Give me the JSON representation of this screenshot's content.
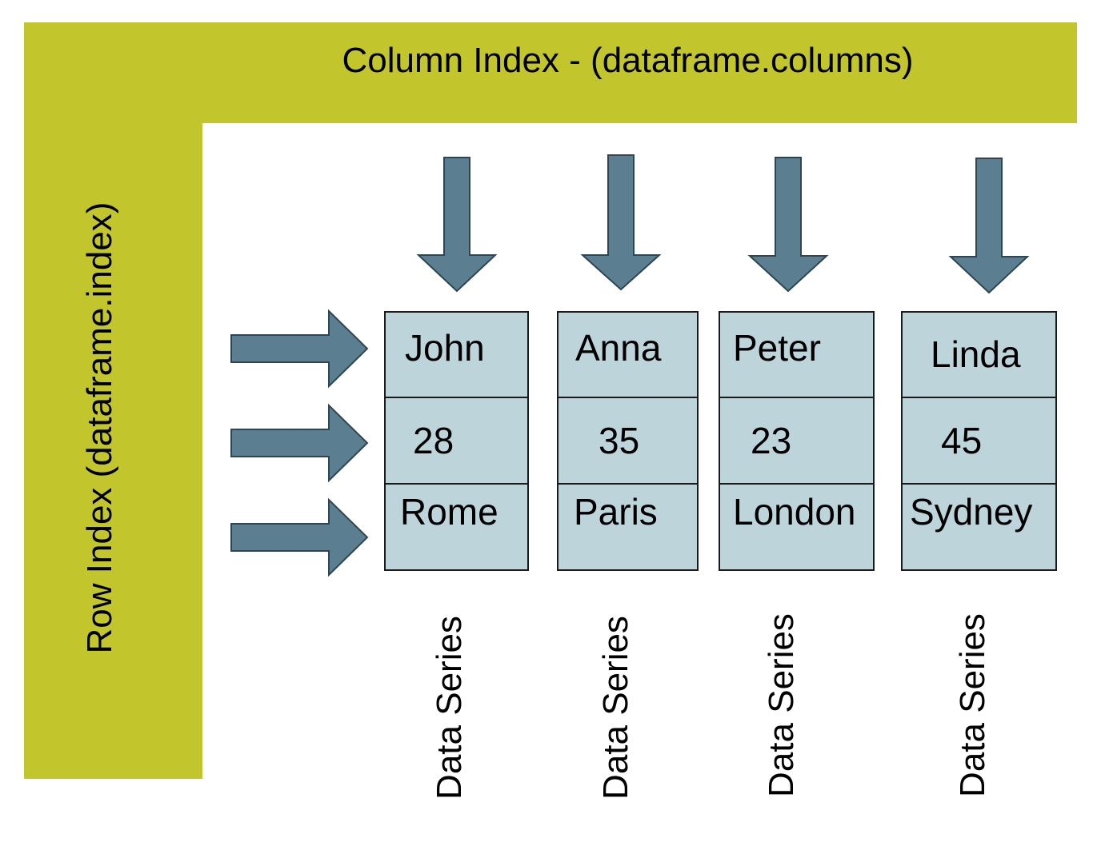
{
  "colors": {
    "band": "#c2c52c",
    "arrow_fill": "#5b7f91",
    "arrow_stroke": "#2f4552",
    "cell_fill": "#bcd4da"
  },
  "column_index_label": "Column Index - (dataframe.columns)",
  "row_index_label": "Row Index (dataframe.index)",
  "columns": [
    {
      "cells": [
        "John",
        "28",
        "Rome"
      ],
      "series_label": "Data Series"
    },
    {
      "cells": [
        "Anna",
        "35",
        "Paris"
      ],
      "series_label": "Data Series"
    },
    {
      "cells": [
        "Peter",
        "23",
        "London"
      ],
      "series_label": "Data Series"
    },
    {
      "cells": [
        "Linda",
        "45",
        "Sydney"
      ],
      "series_label": "Data Series"
    }
  ]
}
